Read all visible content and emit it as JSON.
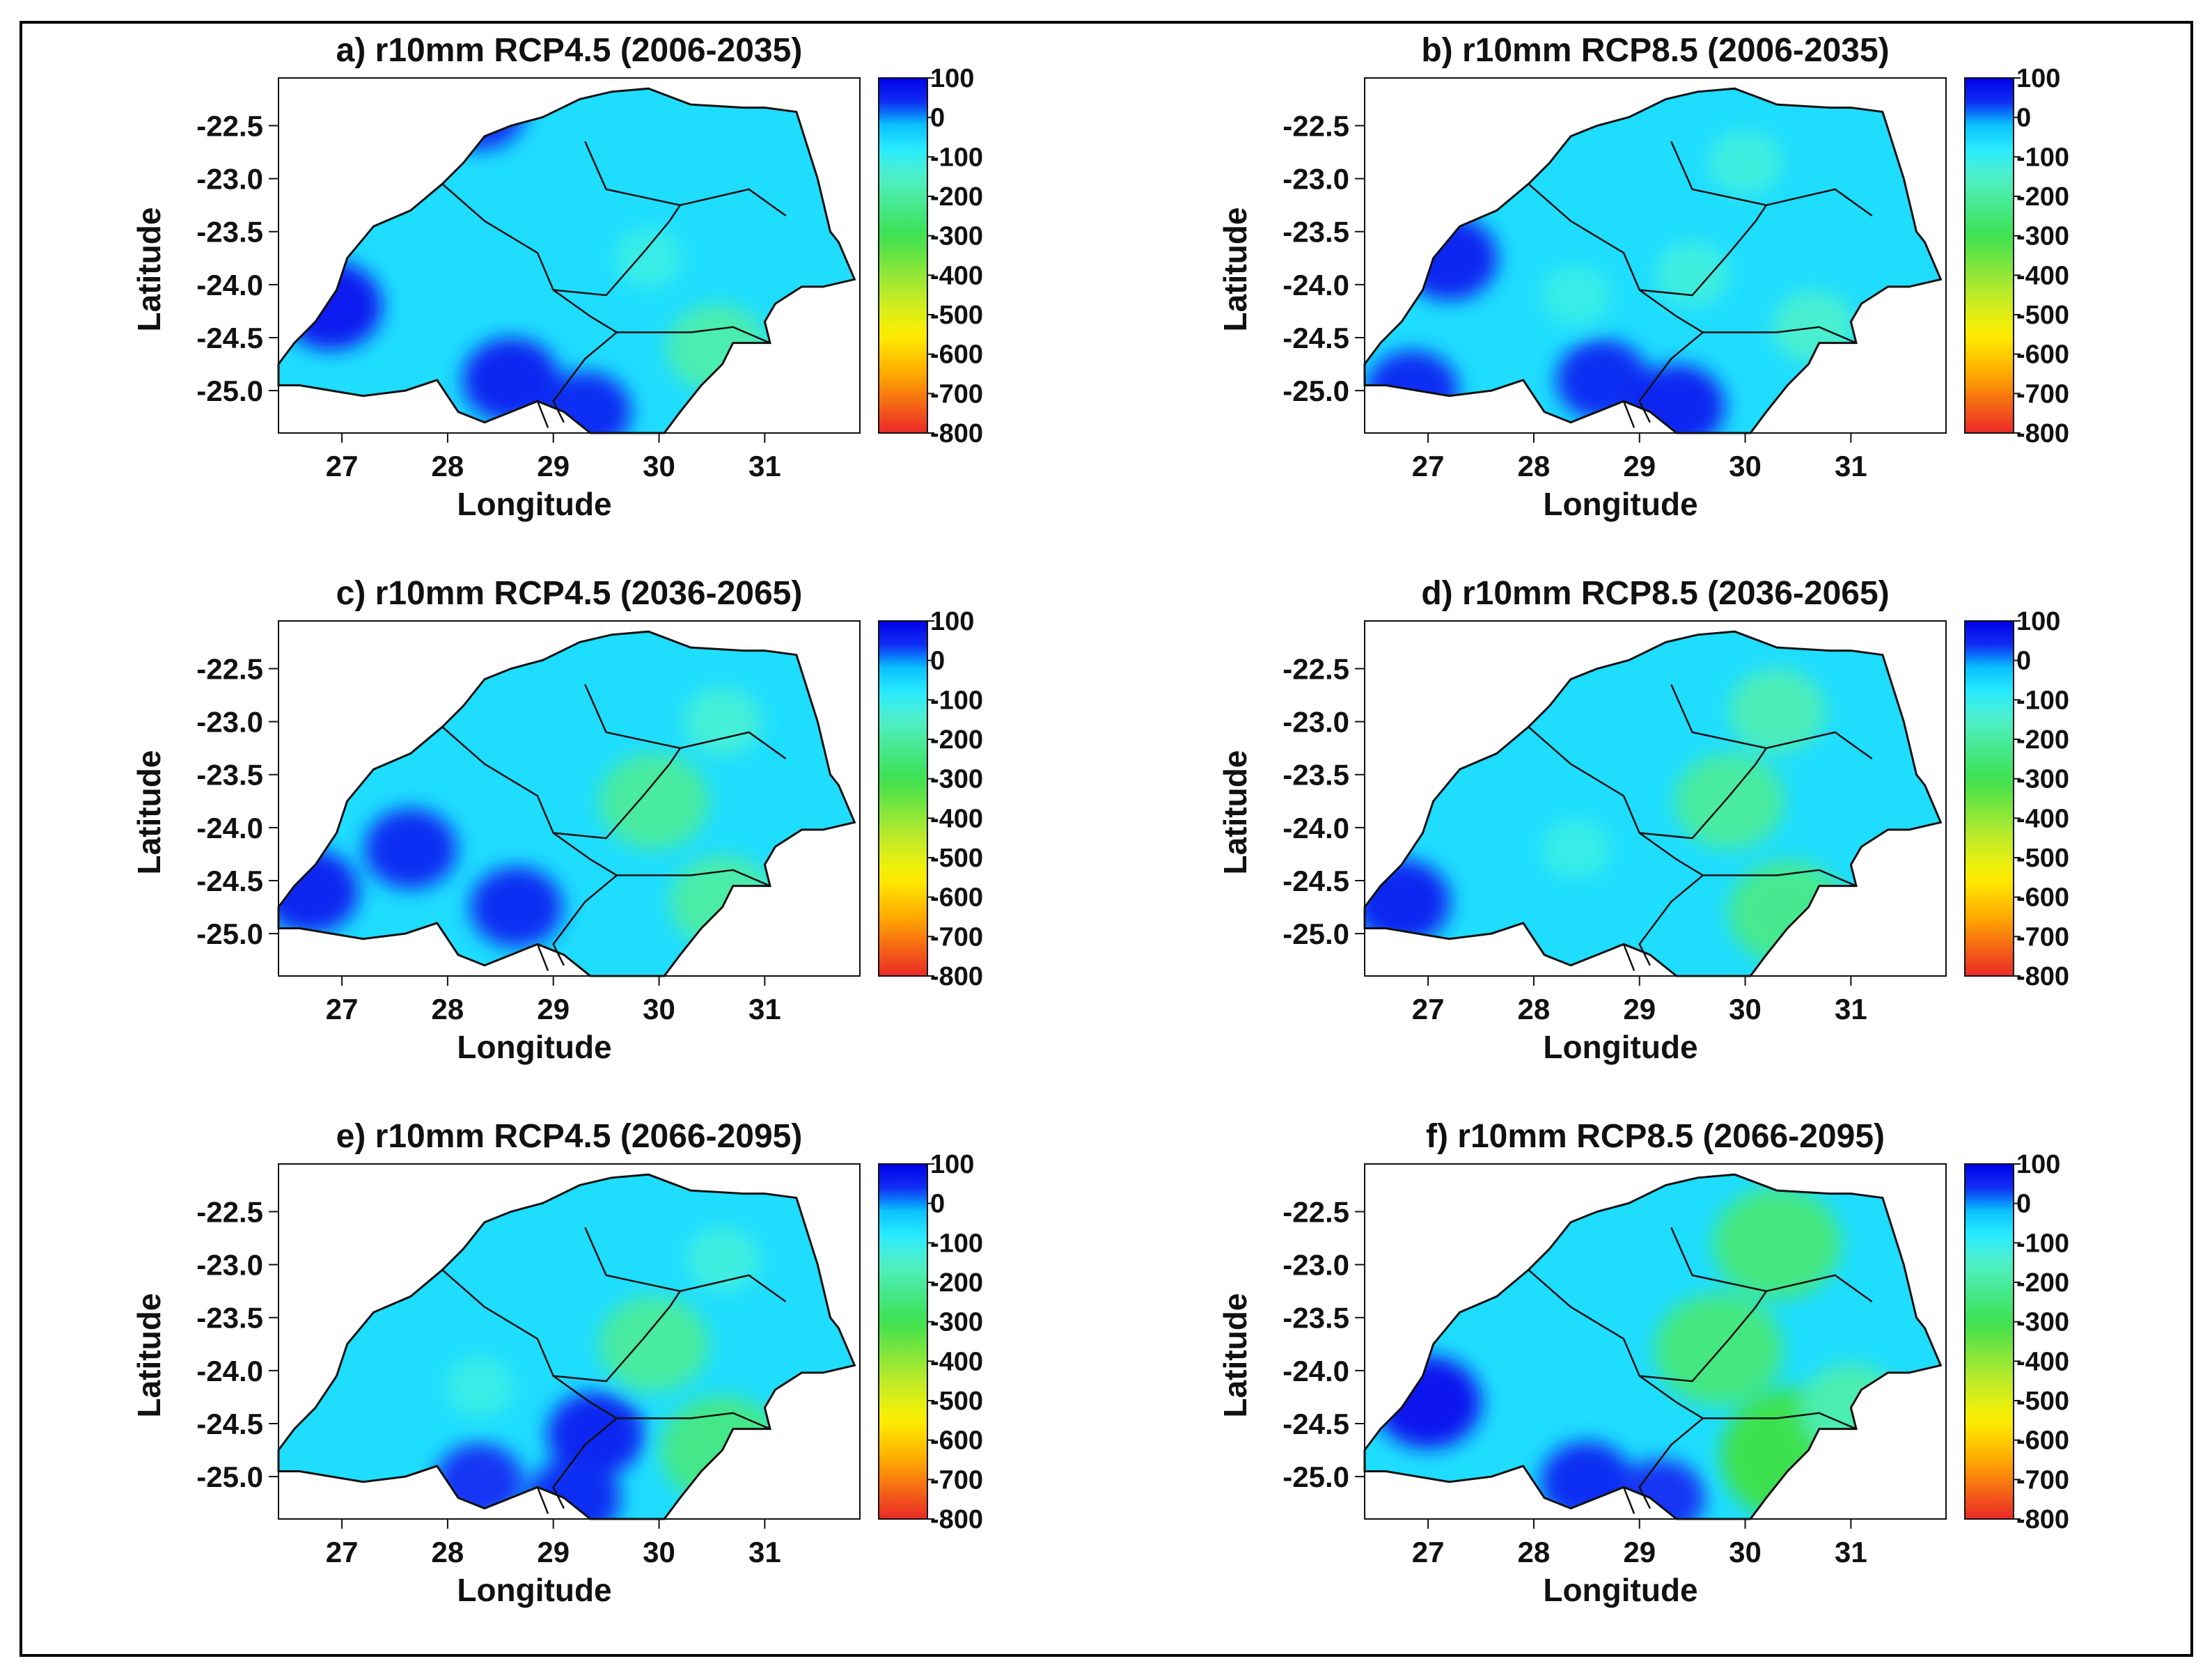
{
  "chart_data": [
    {
      "type": "heatmap",
      "title": "a) r10mm RCP4.5 (2006-2035)",
      "xlabel": "Longitude",
      "ylabel": "Latitude",
      "xlim": [
        26.4,
        31.9
      ],
      "ylim": [
        -25.4,
        -22.05
      ],
      "xticks": [
        27,
        28,
        29,
        30,
        31
      ],
      "yticks": [
        -22.5,
        -23.0,
        -23.5,
        -24.0,
        -24.5,
        -25.0
      ],
      "ytick_labels": [
        "-22.5",
        "-23.0",
        "-23.5",
        "-24.0",
        "-24.5",
        "-25.0"
      ],
      "colorbar": {
        "ticks": [
          "100",
          "0",
          "-100",
          "-200",
          "-300",
          "-400",
          "-500",
          "-600",
          "-700",
          "-800"
        ],
        "range": [
          -800,
          100
        ]
      },
      "background_value": -60,
      "anomalies": [
        {
          "lon": 26.9,
          "lat": -24.2,
          "value": 60
        },
        {
          "lon": 28.6,
          "lat": -24.9,
          "value": 50
        },
        {
          "lon": 29.3,
          "lat": -25.2,
          "value": 40
        },
        {
          "lon": 28.3,
          "lat": -22.35,
          "value": 40
        },
        {
          "lon": 30.55,
          "lat": -24.6,
          "value": -180
        },
        {
          "lon": 29.9,
          "lat": -23.75,
          "value": -110
        }
      ]
    },
    {
      "type": "heatmap",
      "title": "b) r10mm RCP8.5 (2006-2035)",
      "xlabel": "Longitude",
      "ylabel": "Latitude",
      "xlim": [
        26.4,
        31.9
      ],
      "ylim": [
        -25.4,
        -22.05
      ],
      "xticks": [
        27,
        28,
        29,
        30,
        31
      ],
      "yticks": [
        -22.5,
        -23.0,
        -23.5,
        -24.0,
        -24.5,
        -25.0
      ],
      "ytick_labels": [
        "-22.5",
        "-23.0",
        "-23.5",
        "-24.0",
        "-24.5",
        "-25.0"
      ],
      "colorbar": {
        "ticks": [
          "100",
          "0",
          "-100",
          "-200",
          "-300",
          "-400",
          "-500",
          "-600",
          "-700",
          "-800"
        ],
        "range": [
          -800,
          100
        ]
      },
      "background_value": -60,
      "anomalies": [
        {
          "lon": 27.2,
          "lat": -23.75,
          "value": 50
        },
        {
          "lon": 26.85,
          "lat": -25.0,
          "value": 40
        },
        {
          "lon": 28.65,
          "lat": -24.9,
          "value": 40
        },
        {
          "lon": 29.35,
          "lat": -25.15,
          "value": 50
        },
        {
          "lon": 30.0,
          "lat": -22.85,
          "value": -120
        },
        {
          "lon": 29.5,
          "lat": -23.9,
          "value": -120
        },
        {
          "lon": 28.4,
          "lat": -24.1,
          "value": -110
        },
        {
          "lon": 30.65,
          "lat": -24.4,
          "value": -140
        }
      ]
    },
    {
      "type": "heatmap",
      "title": "c) r10mm RCP4.5 (2036-2065)",
      "xlabel": "Longitude",
      "ylabel": "Latitude",
      "xlim": [
        26.4,
        31.9
      ],
      "ylim": [
        -25.4,
        -22.05
      ],
      "xticks": [
        27,
        28,
        29,
        30,
        31
      ],
      "yticks": [
        -22.5,
        -23.0,
        -23.5,
        -24.0,
        -24.5,
        -25.0
      ],
      "ytick_labels": [
        "-22.5",
        "-23.0",
        "-23.5",
        "-24.0",
        "-24.5",
        "-25.0"
      ],
      "colorbar": {
        "ticks": [
          "100",
          "0",
          "-100",
          "-200",
          "-300",
          "-400",
          "-500",
          "-600",
          "-700",
          "-800"
        ],
        "range": [
          -800,
          100
        ]
      },
      "background_value": -60,
      "anomalies": [
        {
          "lon": 26.7,
          "lat": -24.6,
          "value": 50
        },
        {
          "lon": 27.65,
          "lat": -24.2,
          "value": 40
        },
        {
          "lon": 28.65,
          "lat": -24.75,
          "value": 40
        },
        {
          "lon": 29.95,
          "lat": -23.75,
          "value": -200
        },
        {
          "lon": 30.6,
          "lat": -23.0,
          "value": -130
        },
        {
          "lon": 30.6,
          "lat": -24.7,
          "value": -190
        }
      ]
    },
    {
      "type": "heatmap",
      "title": "d) r10mm RCP8.5 (2036-2065)",
      "xlabel": "Longitude",
      "ylabel": "Latitude",
      "xlim": [
        26.4,
        31.9
      ],
      "ylim": [
        -25.4,
        -22.05
      ],
      "xticks": [
        27,
        28,
        29,
        30,
        31
      ],
      "yticks": [
        -22.5,
        -23.0,
        -23.5,
        -24.0,
        -24.5,
        -25.0
      ],
      "ytick_labels": [
        "-22.5",
        "-23.0",
        "-23.5",
        "-24.0",
        "-24.5",
        "-25.0"
      ],
      "colorbar": {
        "ticks": [
          "100",
          "0",
          "-100",
          "-200",
          "-300",
          "-400",
          "-500",
          "-600",
          "-700",
          "-800"
        ],
        "range": [
          -800,
          100
        ]
      },
      "background_value": -60,
      "anomalies": [
        {
          "lon": 26.75,
          "lat": -24.7,
          "value": 50
        },
        {
          "lon": 29.85,
          "lat": -23.75,
          "value": -200
        },
        {
          "lon": 30.3,
          "lat": -22.9,
          "value": -170
        },
        {
          "lon": 30.4,
          "lat": -24.8,
          "value": -220
        },
        {
          "lon": 28.4,
          "lat": -24.2,
          "value": -110
        }
      ]
    },
    {
      "type": "heatmap",
      "title": "e) r10mm RCP4.5 (2066-2095)",
      "xlabel": "Longitude",
      "ylabel": "Latitude",
      "xlim": [
        26.4,
        31.9
      ],
      "ylim": [
        -25.4,
        -22.05
      ],
      "xticks": [
        27,
        28,
        29,
        30,
        31
      ],
      "yticks": [
        -22.5,
        -23.0,
        -23.5,
        -24.0,
        -24.5,
        -25.0
      ],
      "ytick_labels": [
        "-22.5",
        "-23.0",
        "-23.5",
        "-24.0",
        "-24.5",
        "-25.0"
      ],
      "colorbar": {
        "ticks": [
          "100",
          "0",
          "-100",
          "-200",
          "-300",
          "-400",
          "-500",
          "-600",
          "-700",
          "-800"
        ],
        "range": [
          -800,
          100
        ]
      },
      "background_value": -60,
      "anomalies": [
        {
          "lon": 29.4,
          "lat": -24.6,
          "value": 50
        },
        {
          "lon": 29.2,
          "lat": -25.2,
          "value": 40
        },
        {
          "lon": 28.3,
          "lat": -25.05,
          "value": 30
        },
        {
          "lon": 29.95,
          "lat": -23.75,
          "value": -200
        },
        {
          "lon": 30.6,
          "lat": -22.95,
          "value": -120
        },
        {
          "lon": 30.6,
          "lat": -24.75,
          "value": -230
        },
        {
          "lon": 28.3,
          "lat": -24.15,
          "value": -110
        }
      ]
    },
    {
      "type": "heatmap",
      "title": "f) r10mm RCP8.5 (2066-2095)",
      "xlabel": "Longitude",
      "ylabel": "Latitude",
      "xlim": [
        26.4,
        31.9
      ],
      "ylim": [
        -25.4,
        -22.05
      ],
      "xticks": [
        27,
        28,
        29,
        30,
        31
      ],
      "yticks": [
        -22.5,
        -23.0,
        -23.5,
        -24.0,
        -24.5,
        -25.0
      ],
      "ytick_labels": [
        "-22.5",
        "-23.0",
        "-23.5",
        "-24.0",
        "-24.5",
        "-25.0"
      ],
      "colorbar": {
        "ticks": [
          "100",
          "0",
          "-100",
          "-200",
          "-300",
          "-400",
          "-500",
          "-600",
          "-700",
          "-800"
        ],
        "range": [
          -800,
          100
        ]
      },
      "background_value": -60,
      "anomalies": [
        {
          "lon": 27.0,
          "lat": -24.3,
          "value": 70
        },
        {
          "lon": 28.5,
          "lat": -25.05,
          "value": 40
        },
        {
          "lon": 29.2,
          "lat": -25.2,
          "value": 30
        },
        {
          "lon": 29.75,
          "lat": -23.8,
          "value": -240
        },
        {
          "lon": 30.3,
          "lat": -22.8,
          "value": -240
        },
        {
          "lon": 30.5,
          "lat": -24.8,
          "value": -300
        },
        {
          "lon": 31.0,
          "lat": -24.35,
          "value": -180
        }
      ]
    }
  ]
}
